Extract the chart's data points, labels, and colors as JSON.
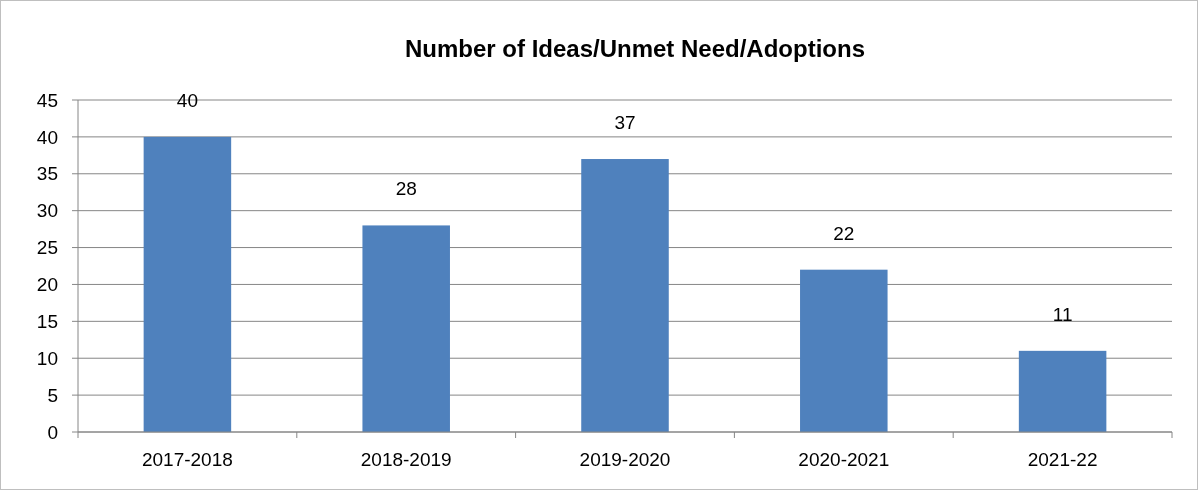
{
  "chart_data": {
    "type": "bar",
    "title": "Number of Ideas/Unmet Need/Adoptions",
    "categories": [
      "2017-2018",
      "2018-2019",
      "2019-2020",
      "2020-2021",
      "2021-22"
    ],
    "values": [
      40,
      28,
      37,
      22,
      11
    ],
    "color": "#4f81bd",
    "ylim": [
      0,
      45
    ],
    "yticks": [
      0,
      5,
      10,
      15,
      20,
      25,
      30,
      35,
      40,
      45
    ],
    "grid": "y",
    "data_labels": true
  }
}
